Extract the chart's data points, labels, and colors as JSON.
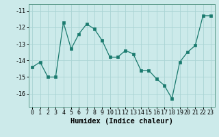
{
  "x": [
    0,
    1,
    2,
    3,
    4,
    5,
    6,
    7,
    8,
    9,
    10,
    11,
    12,
    13,
    14,
    15,
    16,
    17,
    18,
    19,
    20,
    21,
    22,
    23
  ],
  "y": [
    -14.4,
    -14.1,
    -15.0,
    -15.0,
    -11.7,
    -13.3,
    -12.4,
    -11.8,
    -12.1,
    -12.8,
    -13.8,
    -13.8,
    -13.4,
    -13.6,
    -14.6,
    -14.6,
    -15.1,
    -15.5,
    -16.3,
    -14.1,
    -13.5,
    -13.1,
    -11.3,
    -11.3
  ],
  "line_color": "#1a7a6e",
  "marker": "s",
  "marker_size": 2.5,
  "bg_color": "#cceaea",
  "grid_color": "#aad4d4",
  "xlabel": "Humidex (Indice chaleur)",
  "xlabel_fontsize": 7.5,
  "tick_fontsize": 6,
  "ylim": [
    -16.8,
    -10.6
  ],
  "yticks": [
    -11,
    -12,
    -13,
    -14,
    -15,
    -16
  ],
  "xticks": [
    0,
    1,
    2,
    3,
    4,
    5,
    6,
    7,
    8,
    9,
    10,
    11,
    12,
    13,
    14,
    15,
    16,
    17,
    18,
    19,
    20,
    21,
    22,
    23
  ],
  "xlim": [
    -0.5,
    23.5
  ]
}
